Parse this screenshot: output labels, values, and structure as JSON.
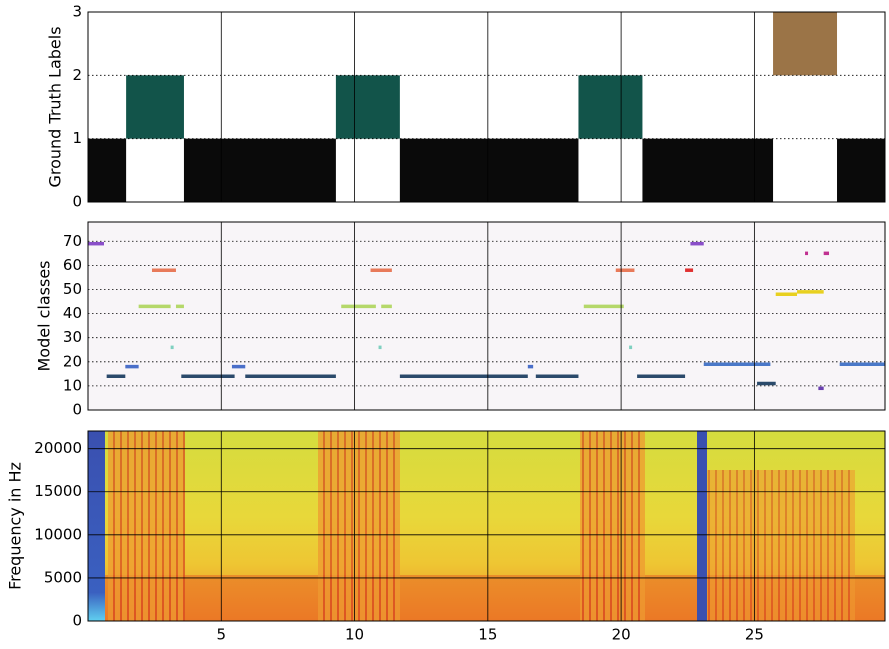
{
  "chart_data": [
    {
      "type": "span",
      "ylabel": "Ground Truth Labels",
      "x_start": [
        0,
        1.43,
        3.6,
        9.3,
        11.7,
        18.4,
        20.8,
        25.7,
        28.1
      ],
      "x_end": [
        1.43,
        3.6,
        9.3,
        11.7,
        18.4,
        20.8,
        25.7,
        28.1,
        29.9
      ],
      "values": [
        0,
        1,
        0,
        1,
        0,
        1,
        0,
        2,
        0
      ],
      "colors": [
        "#0a0a0a",
        "#12544a",
        "#0a0a0a",
        "#12544a",
        "#0a0a0a",
        "#12544a",
        "#0a0a0a",
        "#9b7447",
        "#0a0a0a"
      ],
      "xlim": [
        0,
        29.9
      ],
      "xticks": [
        5,
        10,
        15,
        20,
        25
      ],
      "ylim": [
        0,
        3
      ],
      "yticks": [
        0,
        1,
        2,
        3
      ],
      "grid": true
    },
    {
      "type": "dash",
      "ylabel": "Model classes",
      "x_start": [
        0,
        0.7,
        1.4,
        1.9,
        3.3,
        2.4,
        3.1,
        3.5,
        5.4,
        5.9,
        9.5,
        11.0,
        10.6,
        10.9,
        11.7,
        16.5,
        16.8,
        18.6,
        19.8,
        20.3,
        20.6,
        22.4,
        22.6,
        23.1,
        25.1,
        25.8,
        26.6,
        26.9,
        27.6,
        27.4,
        28.2
      ],
      "x_end": [
        0.6,
        1.4,
        1.9,
        3.1,
        3.6,
        3.3,
        3.2,
        5.5,
        5.9,
        9.3,
        10.8,
        11.4,
        11.4,
        11.0,
        16.5,
        16.7,
        18.4,
        20.1,
        20.5,
        20.4,
        22.4,
        22.7,
        23.1,
        25.6,
        25.8,
        26.6,
        27.6,
        27.0,
        27.8,
        27.6,
        29.9
      ],
      "values": [
        69,
        14,
        18,
        43,
        43,
        58,
        26,
        14,
        18,
        14,
        43,
        43,
        58,
        26,
        14,
        18,
        14,
        43,
        58,
        26,
        14,
        58,
        69,
        19,
        11,
        48,
        49,
        65,
        65,
        9,
        19
      ],
      "colors": [
        "#8a4fc9",
        "#2b4a6b",
        "#4a6fc9",
        "#b5d86a",
        "#b5d86a",
        "#e87a5a",
        "#7fd0c0",
        "#2b4a6b",
        "#4a6fc9",
        "#2b4a6b",
        "#b5d86a",
        "#b5d86a",
        "#e87a5a",
        "#7fd0c0",
        "#2b4a6b",
        "#4a6fc9",
        "#2b4a6b",
        "#b5d86a",
        "#e87a5a",
        "#7fd0c0",
        "#2b4a6b",
        "#e03030",
        "#8a4fc9",
        "#4a78c8",
        "#2b4a6b",
        "#e8d020",
        "#e8d020",
        "#c03090",
        "#c03090",
        "#6a40b0",
        "#4a78c8"
      ],
      "xlim": [
        0,
        29.9
      ],
      "xticks": [
        5,
        10,
        15,
        20,
        25
      ],
      "ylim": [
        0,
        78
      ],
      "yticks": [
        0,
        10,
        20,
        30,
        40,
        50,
        60,
        70
      ],
      "grid": true
    },
    {
      "type": "spectrogram",
      "ylabel": "Frequency in Hz",
      "xlim": [
        0,
        29.9
      ],
      "xticks": [
        5,
        10,
        15,
        20,
        25
      ],
      "ylim": [
        0,
        22050
      ],
      "yticks": [
        0,
        5000,
        10000,
        15000,
        20000
      ],
      "grid": true
    }
  ]
}
